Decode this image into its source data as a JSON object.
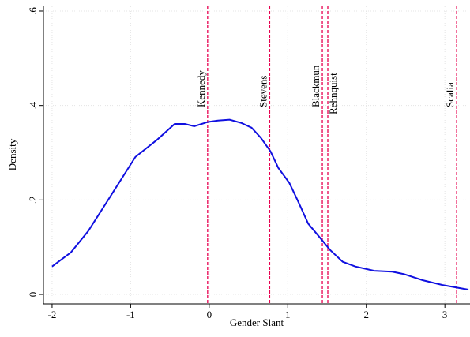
{
  "chart_data": {
    "type": "line",
    "x_label": "Gender Slant",
    "y_label": "Density",
    "xlim": [
      -2.11,
      3.32
    ],
    "ylim": [
      -0.02,
      0.61
    ],
    "xticks": [
      -2,
      -1,
      0,
      1,
      2,
      3
    ],
    "yticks": [
      {
        "value": 0,
        "label": "0"
      },
      {
        "value": 0.2,
        "label": ".2"
      },
      {
        "value": 0.4,
        "label": ".4"
      },
      {
        "value": 0.6,
        "label": ".6"
      }
    ],
    "grid": true,
    "series": [
      {
        "color": "#1010e0",
        "x": [
          -2,
          -1.76,
          -1.54,
          -1.26,
          -0.94,
          -0.66,
          -0.44,
          -0.31,
          -0.19,
          -0.02,
          0.11,
          0.26,
          0.41,
          0.54,
          0.66,
          0.78,
          0.88,
          1.02,
          1.14,
          1.26,
          1.41,
          1.54,
          1.7,
          1.86,
          2.1,
          2.33,
          2.48,
          2.72,
          2.97,
          3.3
        ],
        "values": [
          0.059,
          0.089,
          0.134,
          0.207,
          0.291,
          0.328,
          0.361,
          0.361,
          0.356,
          0.365,
          0.368,
          0.37,
          0.363,
          0.353,
          0.331,
          0.303,
          0.268,
          0.236,
          0.194,
          0.15,
          0.12,
          0.094,
          0.069,
          0.059,
          0.05,
          0.048,
          0.043,
          0.03,
          0.02,
          0.01
        ]
      }
    ],
    "vlines": {
      "color": "#e8004f",
      "labels": [
        "Kennedy",
        "Stevens",
        "Blackmun",
        "Rehnquist",
        "Scalia"
      ],
      "x": [
        -0.02,
        0.77,
        1.44,
        1.51,
        3.15
      ]
    }
  }
}
